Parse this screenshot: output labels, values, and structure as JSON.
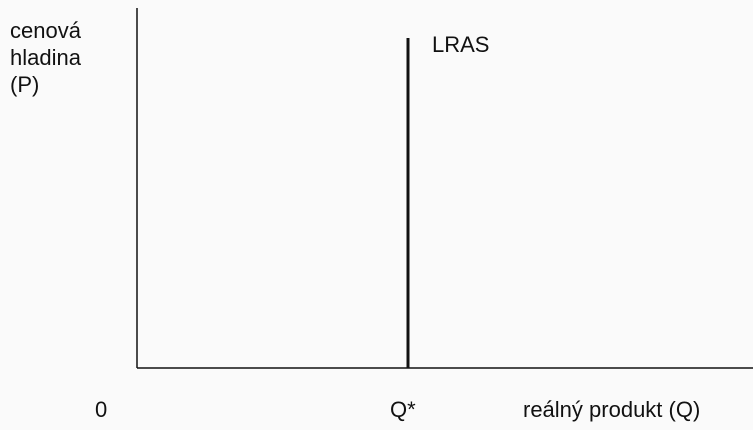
{
  "axes": {
    "y_label": [
      "cenová",
      "hladina",
      "(P)"
    ],
    "origin": "0",
    "x_label": "reálný produkt (Q)"
  },
  "curve": {
    "label": "LRAS",
    "x_label": "Q*"
  }
}
